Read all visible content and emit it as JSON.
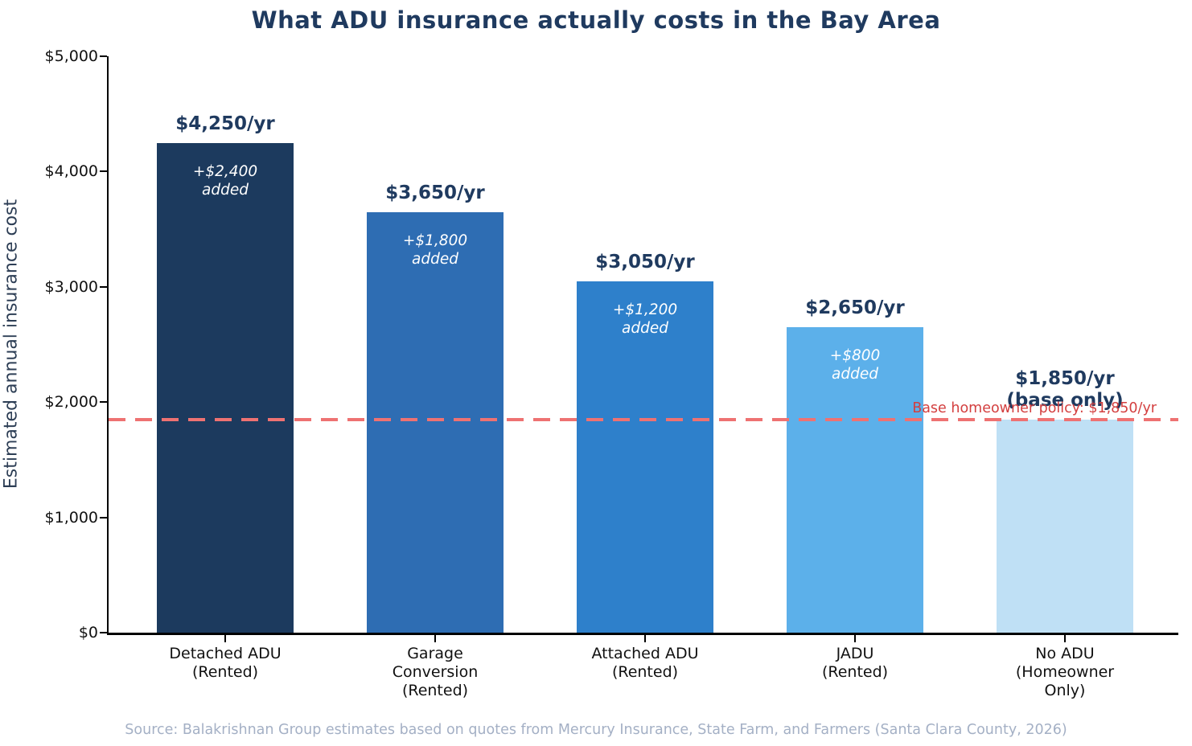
{
  "chart_data": {
    "type": "bar",
    "title": "What ADU insurance actually costs in the Bay Area",
    "ylabel": "Estimated annual insurance cost",
    "ylim": [
      0,
      5000
    ],
    "grid": false,
    "legend": "none",
    "yticks": [
      {
        "value": 0,
        "label": "$0"
      },
      {
        "value": 1000,
        "label": "$1,000"
      },
      {
        "value": 2000,
        "label": "$2,000"
      },
      {
        "value": 3000,
        "label": "$3,000"
      },
      {
        "value": 4000,
        "label": "$4,000"
      },
      {
        "value": 5000,
        "label": "$5,000"
      }
    ],
    "bars": [
      {
        "category_lines": [
          "Detached ADU",
          "(Rented)"
        ],
        "value": 4250,
        "value_label_lines": [
          "$4,250/yr"
        ],
        "annotation_lines": [
          "+$2,400",
          "added"
        ],
        "color": "#1c3a5e"
      },
      {
        "category_lines": [
          "Garage",
          "Conversion",
          "(Rented)"
        ],
        "value": 3650,
        "value_label_lines": [
          "$3,650/yr"
        ],
        "annotation_lines": [
          "+$1,800",
          "added"
        ],
        "color": "#2e6db3"
      },
      {
        "category_lines": [
          "Attached ADU",
          "(Rented)"
        ],
        "value": 3050,
        "value_label_lines": [
          "$3,050/yr"
        ],
        "annotation_lines": [
          "+$1,200",
          "added"
        ],
        "color": "#2e80cb"
      },
      {
        "category_lines": [
          "JADU",
          "(Rented)"
        ],
        "value": 2650,
        "value_label_lines": [
          "$2,650/yr"
        ],
        "annotation_lines": [
          "+$800",
          "added"
        ],
        "color": "#5cb0ea"
      },
      {
        "category_lines": [
          "No ADU",
          "(Homeowner",
          "Only)"
        ],
        "value": 1850,
        "value_label_lines": [
          "$1,850/yr",
          "(base only)"
        ],
        "annotation_lines": [],
        "color": "#bfe0f5"
      }
    ],
    "baseline": {
      "value": 1850,
      "label": "Base homeowner policy: $1,850/yr"
    },
    "source": "Source: Balakrishnan Group estimates based on quotes from Mercury Insurance, State Farm, and Farmers (Santa Clara County, 2026)",
    "colors": {
      "title": "#1f3a5f",
      "value_label": "#1f3a5f",
      "annotation_text": "#ffffff",
      "axis": "#000000",
      "tick_label": "#111111",
      "ylabel": "#2d3e55",
      "baseline_line": "#ee7272",
      "baseline_label": "#d33f3f",
      "source": "#a4b0c5"
    }
  }
}
